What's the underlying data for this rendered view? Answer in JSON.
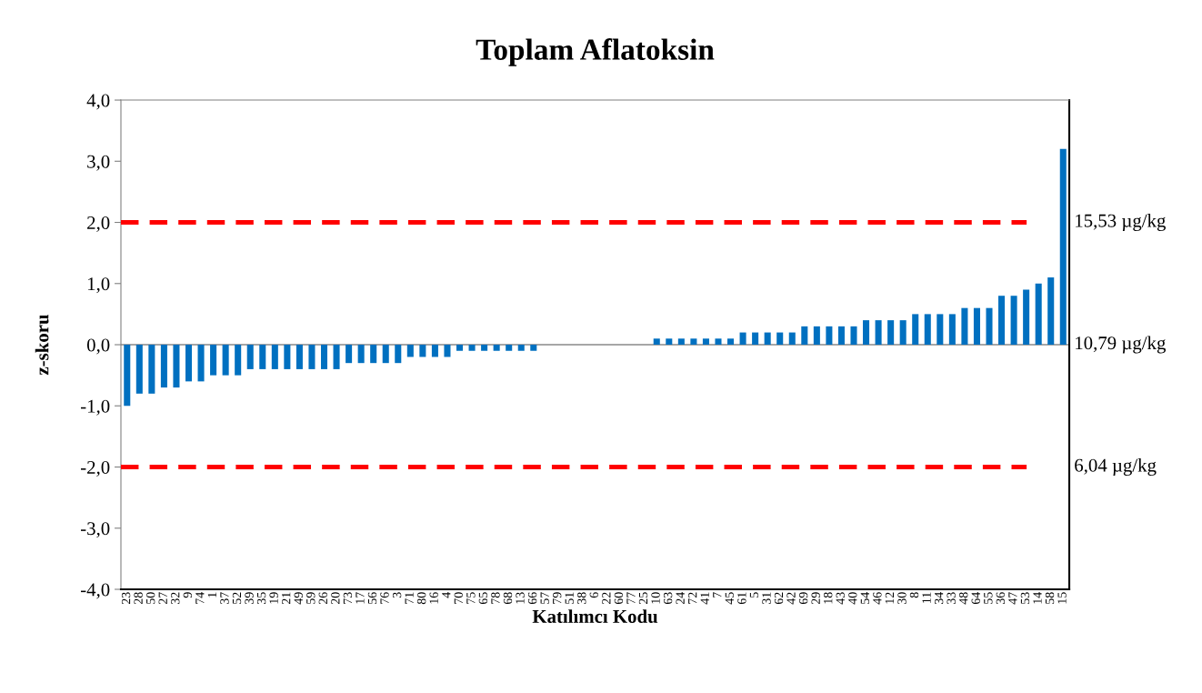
{
  "chart_data": {
    "type": "bar",
    "title": "Toplam Aflatoksin",
    "xlabel": "Katılımcı Kodu",
    "ylabel": "z-skoru",
    "categories": [
      "23",
      "28",
      "50",
      "27",
      "32",
      "9",
      "74",
      "1",
      "37",
      "52",
      "39",
      "35",
      "19",
      "21",
      "49",
      "59",
      "26",
      "20",
      "73",
      "17",
      "56",
      "76",
      "3",
      "71",
      "80",
      "16",
      "4",
      "70",
      "75",
      "65",
      "78",
      "68",
      "13",
      "66",
      "57",
      "79",
      "51",
      "38",
      "6",
      "22",
      "60",
      "77",
      "25",
      "10",
      "63",
      "24",
      "72",
      "41",
      "7",
      "45",
      "61",
      "5",
      "31",
      "62",
      "42",
      "69",
      "29",
      "18",
      "43",
      "40",
      "54",
      "46",
      "12",
      "30",
      "8",
      "11",
      "34",
      "33",
      "48",
      "64",
      "55",
      "36",
      "47",
      "53",
      "14",
      "58",
      "15"
    ],
    "values": [
      -1.0,
      -0.8,
      -0.8,
      -0.7,
      -0.7,
      -0.6,
      -0.6,
      -0.5,
      -0.5,
      -0.5,
      -0.4,
      -0.4,
      -0.4,
      -0.4,
      -0.4,
      -0.4,
      -0.4,
      -0.4,
      -0.3,
      -0.3,
      -0.3,
      -0.3,
      -0.3,
      -0.2,
      -0.2,
      -0.2,
      -0.2,
      -0.1,
      -0.1,
      -0.1,
      -0.1,
      -0.1,
      -0.1,
      -0.1,
      0,
      0,
      0,
      0,
      0,
      0,
      0,
      0,
      0,
      0.1,
      0.1,
      0.1,
      0.1,
      0.1,
      0.1,
      0.1,
      0.2,
      0.2,
      0.2,
      0.2,
      0.2,
      0.3,
      0.3,
      0.3,
      0.3,
      0.3,
      0.4,
      0.4,
      0.4,
      0.4,
      0.5,
      0.5,
      0.5,
      0.5,
      0.6,
      0.6,
      0.6,
      0.8,
      0.8,
      0.9,
      1.0,
      1.1,
      3.2
    ],
    "color": "#0070c0",
    "ylim": [
      -4,
      4
    ],
    "yticks": [
      {
        "value": -4,
        "label": "-4,0"
      },
      {
        "value": -3,
        "label": "-3,0"
      },
      {
        "value": -2,
        "label": "-2,0"
      },
      {
        "value": -1,
        "label": "-1,0"
      },
      {
        "value": 0,
        "label": "0,0"
      },
      {
        "value": 1,
        "label": "1,0"
      },
      {
        "value": 2,
        "label": "2,0"
      },
      {
        "value": 3,
        "label": "3,0"
      },
      {
        "value": 4,
        "label": "4,0"
      }
    ],
    "ref_lines": [
      {
        "axis": "y",
        "value": 2,
        "label": "15,53 µg/kg",
        "color": "#ff0000",
        "line_style": "dashed"
      },
      {
        "axis": "y",
        "value": 0,
        "label": "10,79 µg/kg",
        "color": "#a6a6a6",
        "line_style": "solid"
      },
      {
        "axis": "y",
        "value": -2,
        "label": "6,04 µg/kg",
        "color": "#ff0000",
        "line_style": "dashed"
      }
    ],
    "grid": false,
    "legend": false
  }
}
